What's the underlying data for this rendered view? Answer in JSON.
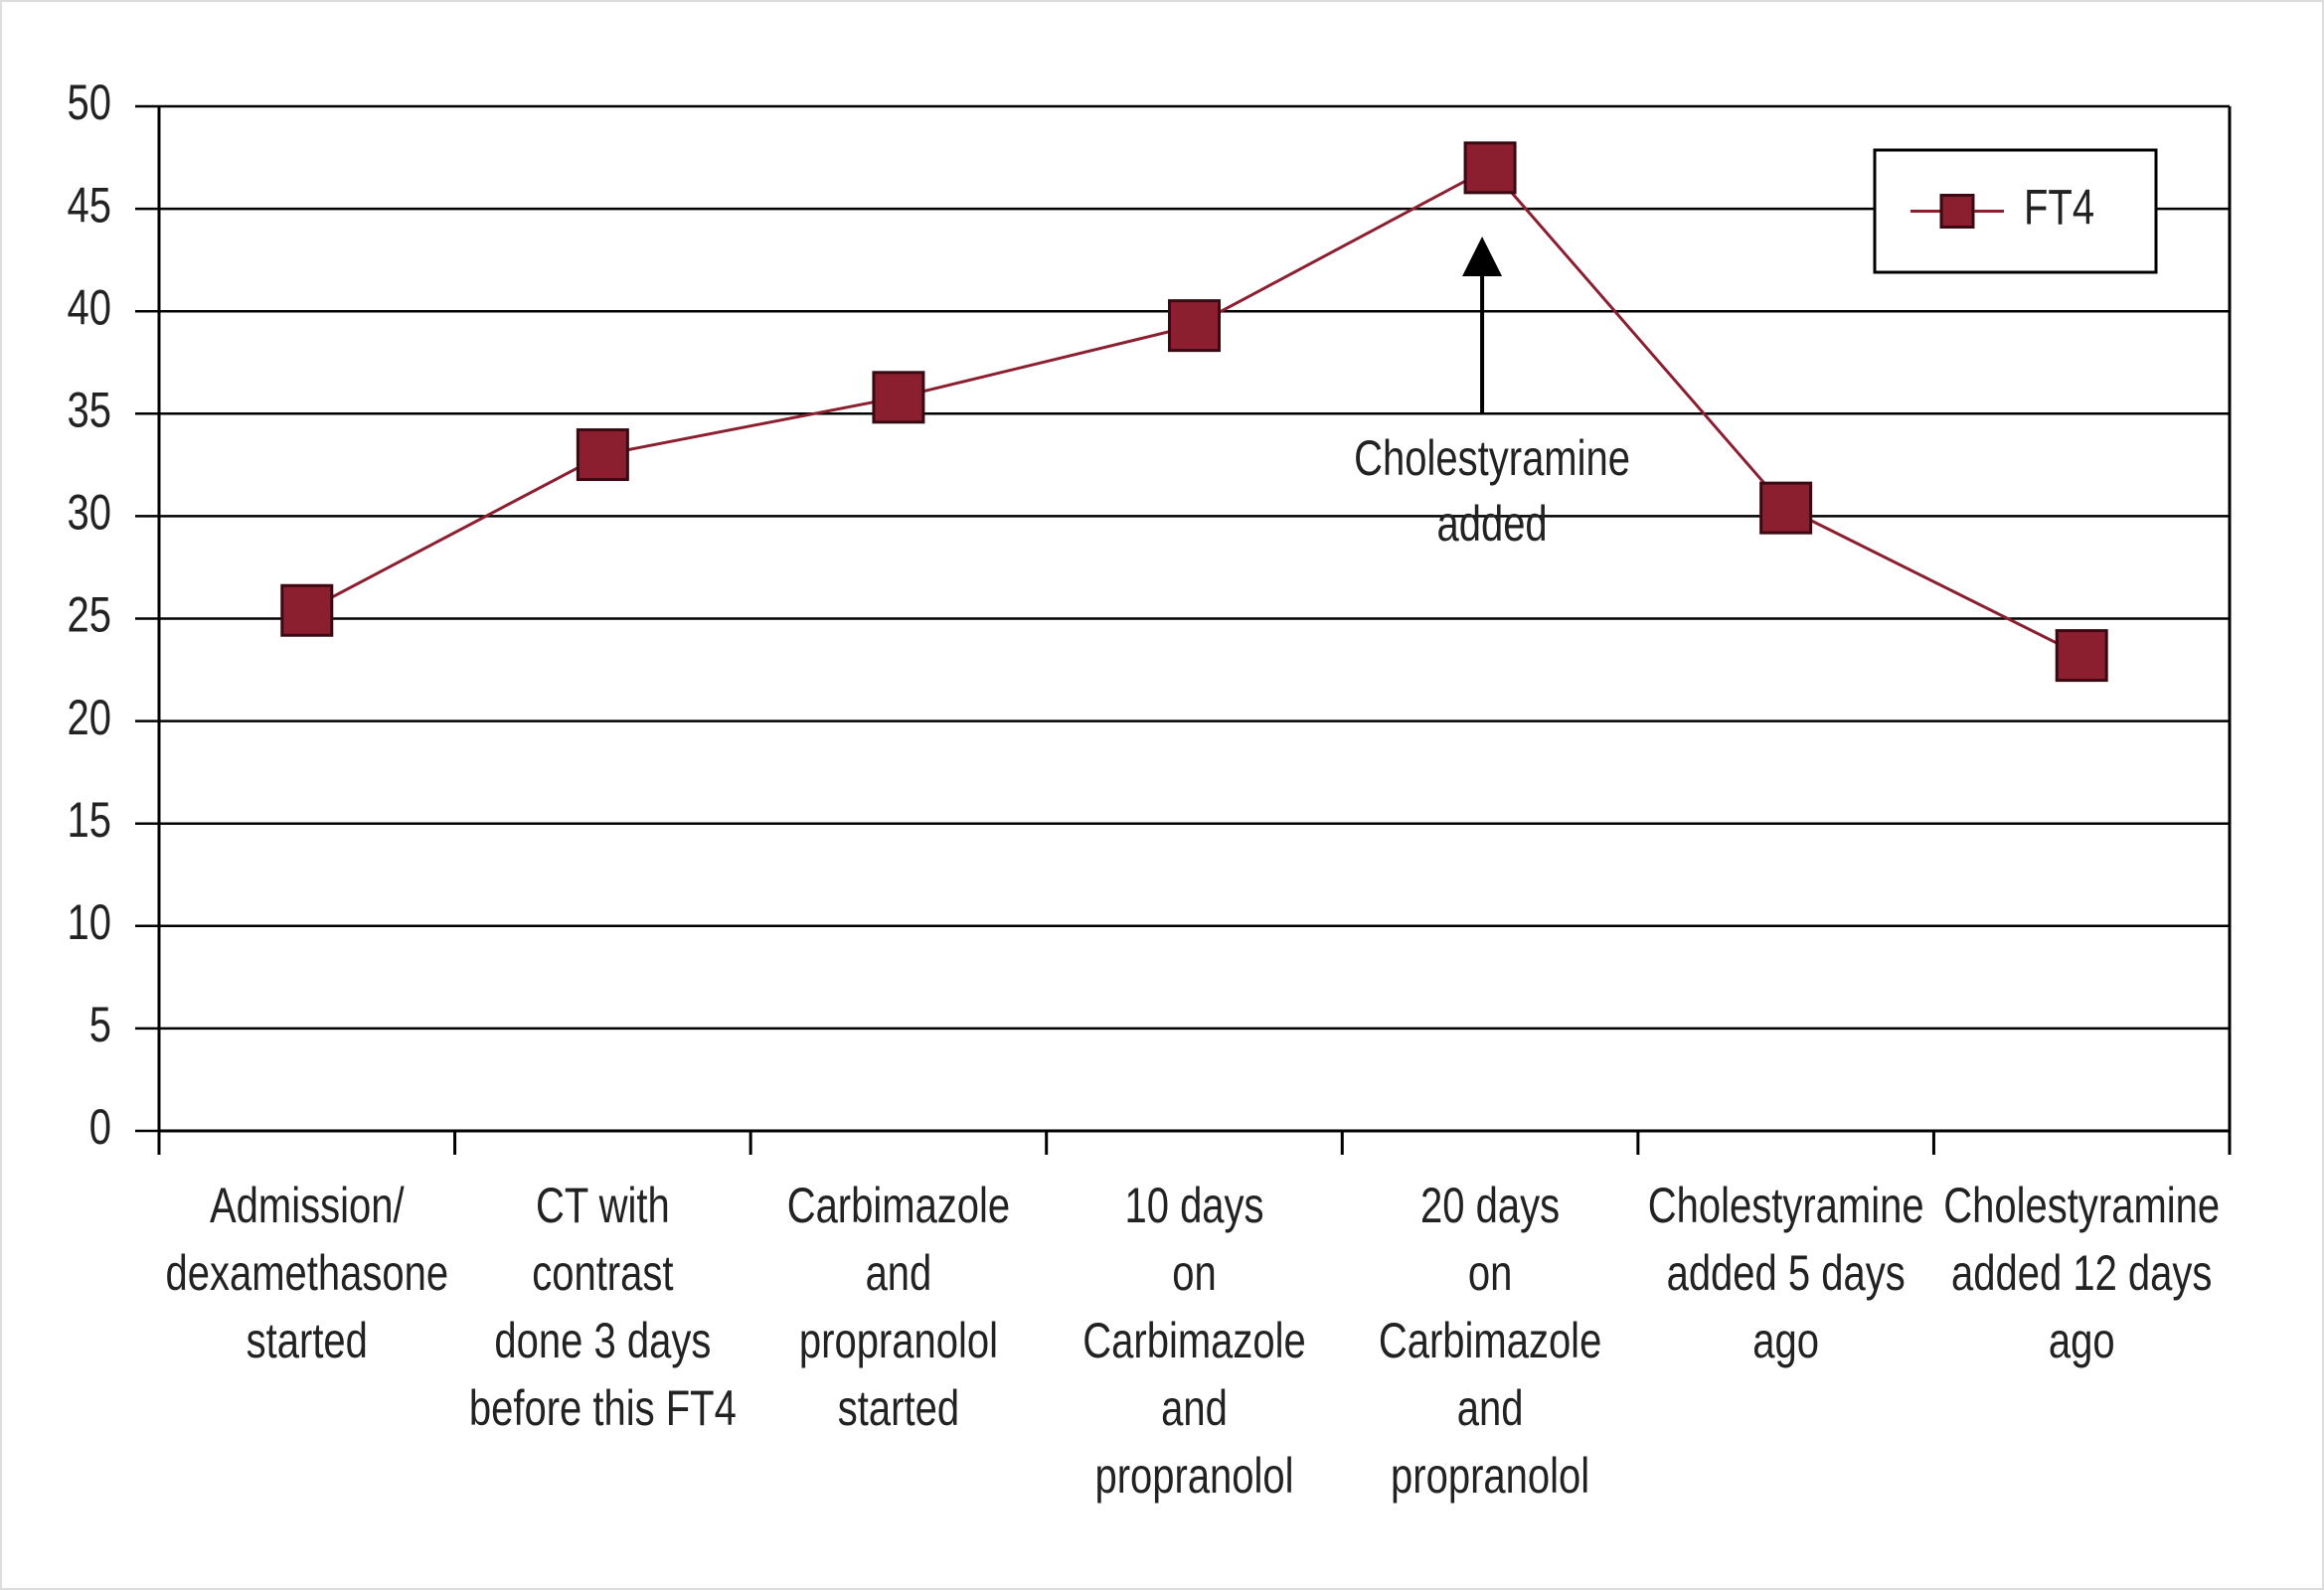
{
  "chart_data": {
    "type": "line",
    "categories": [
      [
        "Admission/",
        "dexamethasone",
        "started"
      ],
      [
        "CT with",
        "contrast",
        "done 3 days",
        "before this FT4"
      ],
      [
        "Carbimazole",
        "and",
        "propranolol",
        "started"
      ],
      [
        "10 days",
        "on",
        "Carbimazole",
        "and",
        "propranolol"
      ],
      [
        "20 days",
        "on",
        "Carbimazole",
        "and",
        "propranolol"
      ],
      [
        "Cholestyramine",
        "added 5 days",
        "ago"
      ],
      [
        "Cholestyramine",
        "added 12 days",
        "ago"
      ]
    ],
    "series": [
      {
        "name": "FT4",
        "color": "#8b1f30",
        "values": [
          25.4,
          33.0,
          35.8,
          39.3,
          47.0,
          30.4,
          23.2
        ]
      }
    ],
    "ylim": [
      0,
      50
    ],
    "yticks": [
      0,
      5,
      10,
      15,
      20,
      25,
      30,
      35,
      40,
      45,
      50
    ],
    "grid": true,
    "legend": "upper right",
    "annotation": [
      "Cholestyramine",
      "added"
    ]
  }
}
